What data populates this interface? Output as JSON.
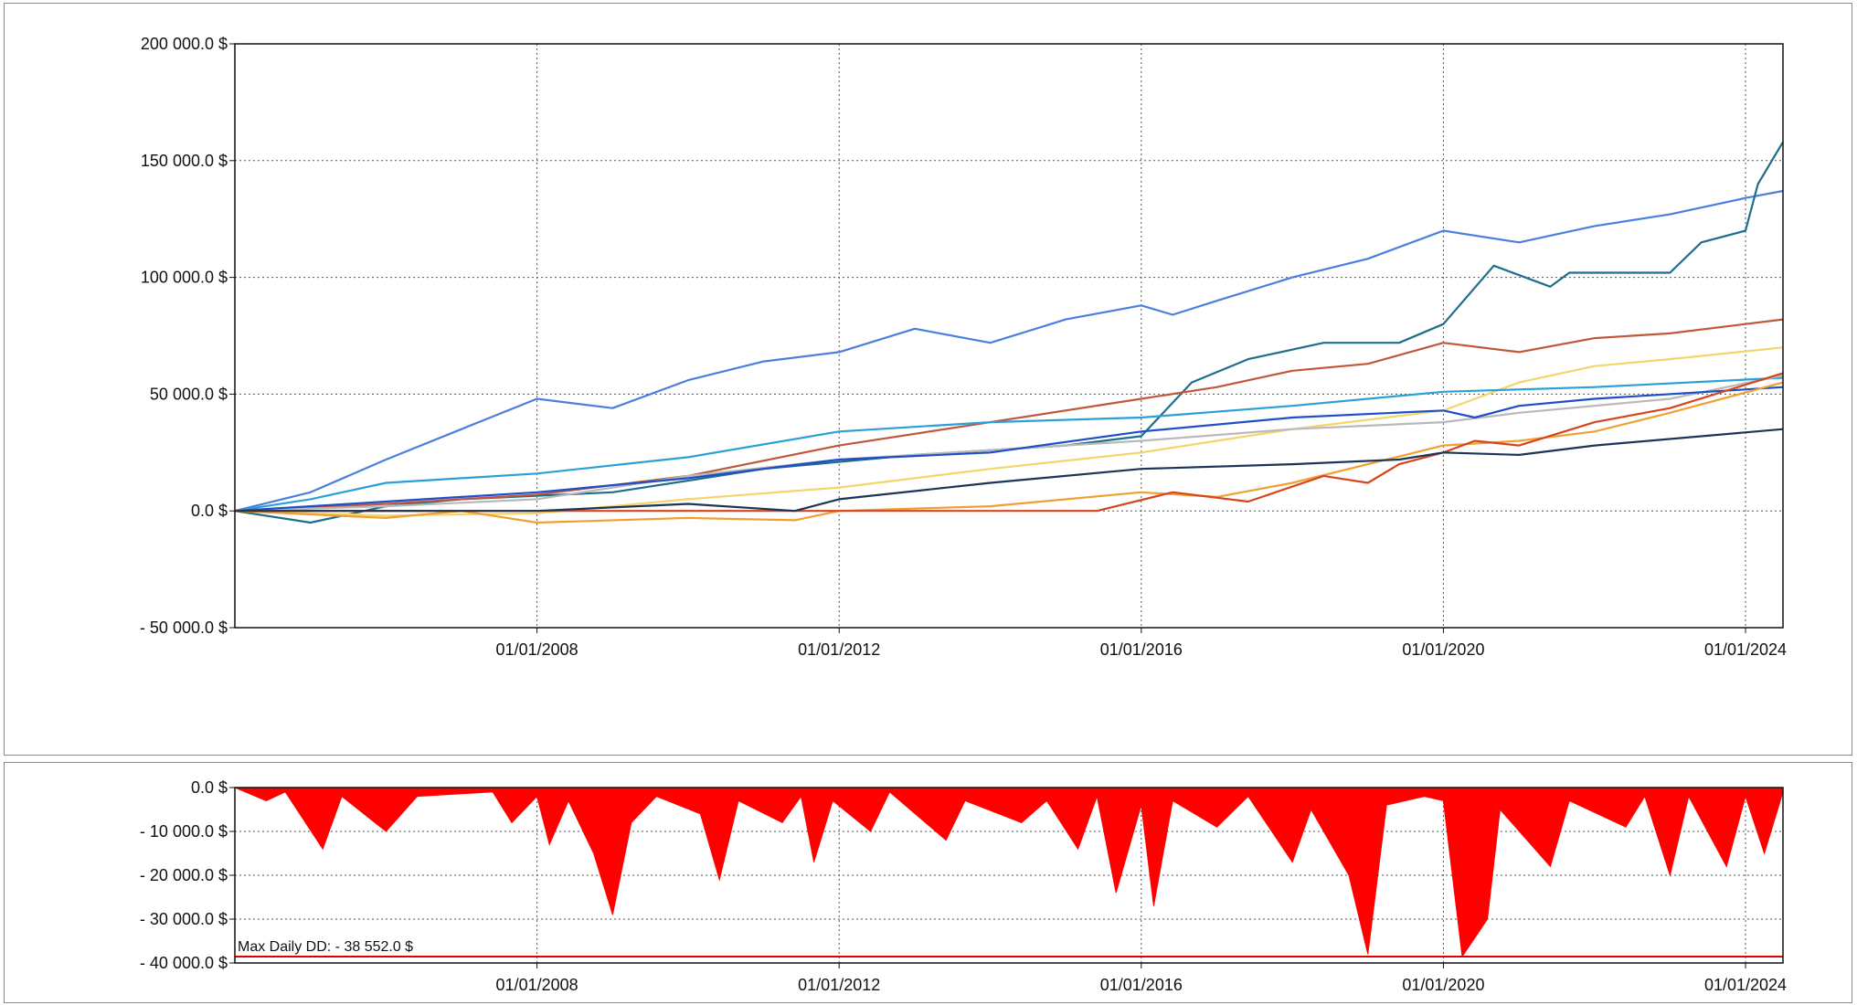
{
  "chart_data": [
    {
      "type": "line",
      "title": "",
      "xlabel": "",
      "ylabel": "",
      "x_range": [
        "2004-01-01",
        "2024-06-30"
      ],
      "ylim": [
        -50000,
        200000
      ],
      "grid": true,
      "y_ticks": [
        "200 000.0 $",
        "150 000.0 $",
        "100 000.0 $",
        "50 000.0 $",
        "0.0 $",
        "- 50 000.0 $"
      ],
      "x_ticks": [
        "01/01/2008",
        "01/01/2012",
        "01/01/2016",
        "01/01/2020",
        "01/01/2024"
      ],
      "series": [
        {
          "color": "#4a7fde",
          "points": [
            [
              "2004-01-01",
              0
            ],
            [
              "2005-01-01",
              8000
            ],
            [
              "2006-01-01",
              22000
            ],
            [
              "2007-01-01",
              35000
            ],
            [
              "2008-01-01",
              48000
            ],
            [
              "2009-01-01",
              44000
            ],
            [
              "2010-01-01",
              56000
            ],
            [
              "2011-01-01",
              64000
            ],
            [
              "2012-01-01",
              68000
            ],
            [
              "2013-01-01",
              78000
            ],
            [
              "2014-01-01",
              72000
            ],
            [
              "2015-01-01",
              82000
            ],
            [
              "2016-01-01",
              88000
            ],
            [
              "2016-06-01",
              84000
            ],
            [
              "2017-01-01",
              90000
            ],
            [
              "2018-01-01",
              100000
            ],
            [
              "2019-01-01",
              108000
            ],
            [
              "2020-01-01",
              120000
            ],
            [
              "2021-01-01",
              115000
            ],
            [
              "2022-01-01",
              122000
            ],
            [
              "2023-01-01",
              127000
            ],
            [
              "2024-01-01",
              134000
            ],
            [
              "2024-06-30",
              137000
            ]
          ]
        },
        {
          "color": "#1f6d8c",
          "points": [
            [
              "2004-01-01",
              0
            ],
            [
              "2005-01-01",
              -5000
            ],
            [
              "2006-01-01",
              2000
            ],
            [
              "2007-01-01",
              5000
            ],
            [
              "2009-01-01",
              8000
            ],
            [
              "2011-01-01",
              18000
            ],
            [
              "2013-01-01",
              24000
            ],
            [
              "2015-01-01",
              28000
            ],
            [
              "2016-01-01",
              32000
            ],
            [
              "2016-09-01",
              55000
            ],
            [
              "2017-06-01",
              65000
            ],
            [
              "2018-06-01",
              72000
            ],
            [
              "2019-06-01",
              72000
            ],
            [
              "2020-01-01",
              80000
            ],
            [
              "2020-09-01",
              105000
            ],
            [
              "2021-06-01",
              96000
            ],
            [
              "2021-09-01",
              102000
            ],
            [
              "2023-01-01",
              102000
            ],
            [
              "2023-06-01",
              115000
            ],
            [
              "2024-01-01",
              120000
            ],
            [
              "2024-03-01",
              140000
            ],
            [
              "2024-06-30",
              158000
            ]
          ]
        },
        {
          "color": "#c0573a",
          "points": [
            [
              "2004-01-01",
              0
            ],
            [
              "2006-01-01",
              3000
            ],
            [
              "2008-01-01",
              7000
            ],
            [
              "2010-01-01",
              15000
            ],
            [
              "2012-01-01",
              28000
            ],
            [
              "2014-01-01",
              38000
            ],
            [
              "2016-01-01",
              48000
            ],
            [
              "2017-01-01",
              53000
            ],
            [
              "2018-01-01",
              60000
            ],
            [
              "2019-01-01",
              63000
            ],
            [
              "2020-01-01",
              72000
            ],
            [
              "2021-01-01",
              68000
            ],
            [
              "2022-01-01",
              74000
            ],
            [
              "2023-01-01",
              76000
            ],
            [
              "2024-01-01",
              80000
            ],
            [
              "2024-06-30",
              82000
            ]
          ]
        },
        {
          "color": "#f2d66a",
          "points": [
            [
              "2004-01-01",
              0
            ],
            [
              "2006-01-01",
              -2000
            ],
            [
              "2008-01-01",
              -1000
            ],
            [
              "2010-01-01",
              5000
            ],
            [
              "2012-01-01",
              10000
            ],
            [
              "2014-01-01",
              18000
            ],
            [
              "2016-01-01",
              25000
            ],
            [
              "2018-01-01",
              35000
            ],
            [
              "2020-01-01",
              43000
            ],
            [
              "2021-01-01",
              55000
            ],
            [
              "2022-01-01",
              62000
            ],
            [
              "2023-01-01",
              65000
            ],
            [
              "2024-06-30",
              70000
            ]
          ]
        },
        {
          "color": "#2aa0d8",
          "points": [
            [
              "2004-01-01",
              0
            ],
            [
              "2005-01-01",
              5000
            ],
            [
              "2006-01-01",
              12000
            ],
            [
              "2008-01-01",
              16000
            ],
            [
              "2010-01-01",
              23000
            ],
            [
              "2012-01-01",
              34000
            ],
            [
              "2014-01-01",
              38000
            ],
            [
              "2016-01-01",
              40000
            ],
            [
              "2018-01-01",
              45000
            ],
            [
              "2020-01-01",
              51000
            ],
            [
              "2022-01-01",
              53000
            ],
            [
              "2024-06-30",
              57000
            ]
          ]
        },
        {
          "color": "#b9b9b9",
          "points": [
            [
              "2004-01-01",
              0
            ],
            [
              "2006-01-01",
              2000
            ],
            [
              "2008-01-01",
              5000
            ],
            [
              "2010-01-01",
              15000
            ],
            [
              "2012-01-01",
              22000
            ],
            [
              "2014-01-01",
              26000
            ],
            [
              "2016-01-01",
              30000
            ],
            [
              "2018-01-01",
              35000
            ],
            [
              "2020-01-01",
              38000
            ],
            [
              "2021-01-01",
              42000
            ],
            [
              "2023-01-01",
              48000
            ],
            [
              "2024-06-30",
              58000
            ]
          ]
        },
        {
          "color": "#1e4fc8",
          "points": [
            [
              "2004-01-01",
              0
            ],
            [
              "2006-01-01",
              4000
            ],
            [
              "2008-01-01",
              8000
            ],
            [
              "2010-01-01",
              14000
            ],
            [
              "2012-01-01",
              22000
            ],
            [
              "2014-01-01",
              25000
            ],
            [
              "2016-01-01",
              34000
            ],
            [
              "2018-01-01",
              40000
            ],
            [
              "2020-01-01",
              43000
            ],
            [
              "2020-06-01",
              40000
            ],
            [
              "2021-01-01",
              45000
            ],
            [
              "2022-01-01",
              48000
            ],
            [
              "2024-06-30",
              53000
            ]
          ]
        },
        {
          "color": "#f0a030",
          "points": [
            [
              "2004-01-01",
              0
            ],
            [
              "2006-01-01",
              -3000
            ],
            [
              "2007-01-01",
              0
            ],
            [
              "2008-01-01",
              -5000
            ],
            [
              "2010-01-01",
              -3000
            ],
            [
              "2011-06-01",
              -4000
            ],
            [
              "2012-01-01",
              0
            ],
            [
              "2014-01-01",
              2000
            ],
            [
              "2016-01-01",
              8000
            ],
            [
              "2017-01-01",
              6000
            ],
            [
              "2018-01-01",
              12000
            ],
            [
              "2019-01-01",
              20000
            ],
            [
              "2020-01-01",
              28000
            ],
            [
              "2021-01-01",
              30000
            ],
            [
              "2022-01-01",
              34000
            ],
            [
              "2023-01-01",
              42000
            ],
            [
              "2024-06-30",
              55000
            ]
          ]
        },
        {
          "color": "#d5451e",
          "points": [
            [
              "2004-01-01",
              0
            ],
            [
              "2012-01-01",
              0
            ],
            [
              "2014-01-01",
              0
            ],
            [
              "2015-06-01",
              0
            ],
            [
              "2016-06-01",
              8000
            ],
            [
              "2017-06-01",
              4000
            ],
            [
              "2018-06-01",
              15000
            ],
            [
              "2019-01-01",
              12000
            ],
            [
              "2019-06-01",
              20000
            ],
            [
              "2020-01-01",
              25000
            ],
            [
              "2020-06-01",
              30000
            ],
            [
              "2021-01-01",
              28000
            ],
            [
              "2022-01-01",
              38000
            ],
            [
              "2023-01-01",
              44000
            ],
            [
              "2024-06-30",
              59000
            ]
          ]
        },
        {
          "color": "#1c3557",
          "points": [
            [
              "2004-01-01",
              0
            ],
            [
              "2008-01-01",
              0
            ],
            [
              "2010-01-01",
              3000
            ],
            [
              "2011-06-01",
              0
            ],
            [
              "2012-01-01",
              5000
            ],
            [
              "2014-01-01",
              12000
            ],
            [
              "2016-01-01",
              18000
            ],
            [
              "2018-01-01",
              20000
            ],
            [
              "2019-06-01",
              22000
            ],
            [
              "2020-01-01",
              25000
            ],
            [
              "2021-01-01",
              24000
            ],
            [
              "2022-01-01",
              28000
            ],
            [
              "2024-06-30",
              35000
            ]
          ]
        }
      ]
    },
    {
      "type": "area",
      "title": "",
      "xlabel": "",
      "ylabel": "",
      "x_range": [
        "2004-01-01",
        "2024-06-30"
      ],
      "ylim": [
        -40000,
        0
      ],
      "grid": true,
      "y_ticks": [
        "0.0 $",
        "- 10 000.0 $",
        "- 20 000.0 $",
        "- 30 000.0 $",
        "- 40 000.0 $"
      ],
      "x_ticks": [
        "01/01/2008",
        "01/01/2012",
        "01/01/2016",
        "01/01/2020",
        "01/01/2024"
      ],
      "fill_color": "#ff0000",
      "annotation": "Max Daily DD: - 38 552.0 $",
      "max_dd": -38552,
      "points": [
        [
          "2004-01-01",
          0
        ],
        [
          "2004-06-01",
          -3000
        ],
        [
          "2004-09-01",
          -1000
        ],
        [
          "2005-03-01",
          -14000
        ],
        [
          "2005-06-01",
          -2000
        ],
        [
          "2006-01-01",
          -10000
        ],
        [
          "2006-06-01",
          -2000
        ],
        [
          "2007-06-01",
          -1000
        ],
        [
          "2007-09-01",
          -8000
        ],
        [
          "2008-01-01",
          -2000
        ],
        [
          "2008-03-01",
          -13000
        ],
        [
          "2008-06-01",
          -3000
        ],
        [
          "2008-10-01",
          -15000
        ],
        [
          "2009-01-01",
          -29000
        ],
        [
          "2009-04-01",
          -8000
        ],
        [
          "2009-08-01",
          -2000
        ],
        [
          "2010-03-01",
          -6000
        ],
        [
          "2010-06-01",
          -21000
        ],
        [
          "2010-09-01",
          -3000
        ],
        [
          "2011-04-01",
          -8000
        ],
        [
          "2011-07-01",
          -2000
        ],
        [
          "2011-09-01",
          -17000
        ],
        [
          "2011-12-01",
          -3000
        ],
        [
          "2012-06-01",
          -10000
        ],
        [
          "2012-09-01",
          -1000
        ],
        [
          "2013-06-01",
          -12000
        ],
        [
          "2013-09-01",
          -3000
        ],
        [
          "2014-06-01",
          -8000
        ],
        [
          "2014-10-01",
          -3000
        ],
        [
          "2015-03-01",
          -14000
        ],
        [
          "2015-06-01",
          -2000
        ],
        [
          "2015-09-01",
          -24000
        ],
        [
          "2016-01-01",
          -4000
        ],
        [
          "2016-03-01",
          -27000
        ],
        [
          "2016-06-01",
          -3000
        ],
        [
          "2017-01-01",
          -9000
        ],
        [
          "2017-06-01",
          -2000
        ],
        [
          "2018-01-01",
          -17000
        ],
        [
          "2018-04-01",
          -5000
        ],
        [
          "2018-10-01",
          -20000
        ],
        [
          "2019-01-01",
          -38000
        ],
        [
          "2019-04-01",
          -4000
        ],
        [
          "2019-10-01",
          -2000
        ],
        [
          "2020-01-01",
          -3000
        ],
        [
          "2020-04-01",
          -38552
        ],
        [
          "2020-08-01",
          -30000
        ],
        [
          "2020-10-01",
          -5000
        ],
        [
          "2021-06-01",
          -18000
        ],
        [
          "2021-09-01",
          -3000
        ],
        [
          "2022-06-01",
          -9000
        ],
        [
          "2022-09-01",
          -2000
        ],
        [
          "2023-01-01",
          -20000
        ],
        [
          "2023-04-01",
          -2000
        ],
        [
          "2023-10-01",
          -18000
        ],
        [
          "2024-01-01",
          -2000
        ],
        [
          "2024-04-01",
          -15000
        ],
        [
          "2024-06-30",
          -1000
        ]
      ]
    }
  ]
}
